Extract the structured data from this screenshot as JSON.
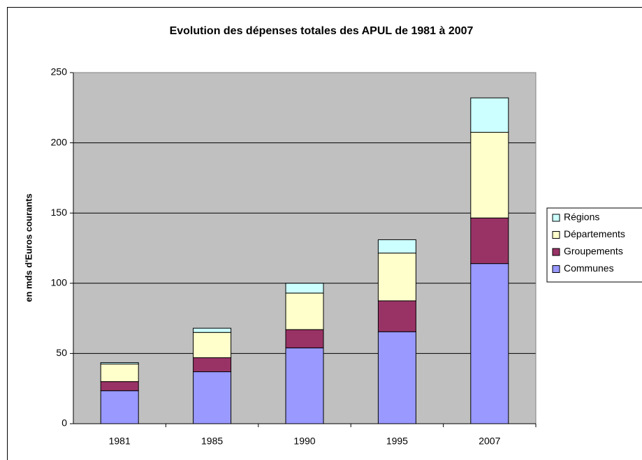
{
  "chart_data": {
    "type": "stacked_bar",
    "title": "Evolution des dépenses totales des APUL de 1981 à 2007",
    "y_label": "en mds d'Euros courants",
    "categories": [
      "1981",
      "1985",
      "1990",
      "1995",
      "2007"
    ],
    "series": [
      {
        "name": "Communes",
        "color": "#9999ff",
        "values": [
          23.5,
          37,
          54,
          65.5,
          114
        ]
      },
      {
        "name": "Groupements",
        "color": "#993366",
        "values": [
          6.5,
          10,
          13,
          22,
          32.5
        ]
      },
      {
        "name": "Départements",
        "color": "#ffffcc",
        "values": [
          12.5,
          18,
          26,
          34,
          61
        ]
      },
      {
        "name": "Régions",
        "color": "#ccffff",
        "values": [
          1,
          3,
          7,
          9.5,
          24.5
        ]
      }
    ],
    "ylim": [
      0,
      250
    ],
    "yticks": [
      0,
      50,
      100,
      150,
      200,
      250
    ],
    "grid": true,
    "legend": "right",
    "plot_background": "#c0c0c0"
  }
}
